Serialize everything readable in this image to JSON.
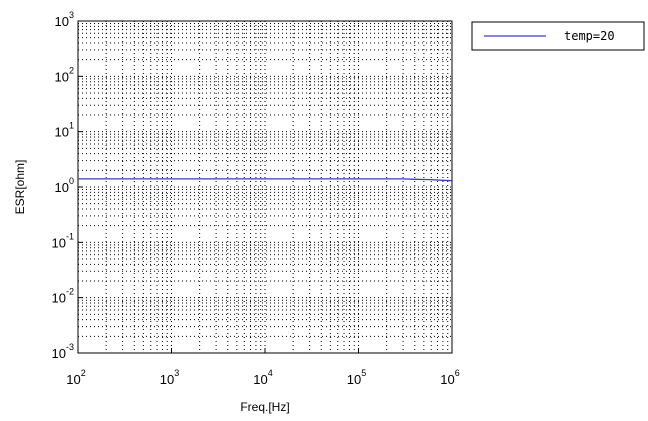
{
  "chart_data": {
    "type": "line",
    "title": "",
    "xlabel": "Freq.[Hz]",
    "ylabel": "ESR[ohm]",
    "x_scale": "log",
    "y_scale": "log",
    "xlim": [
      100,
      1000000
    ],
    "ylim": [
      0.001,
      1000
    ],
    "x_ticks": [
      {
        "base": "10",
        "exp": "2",
        "value": 100
      },
      {
        "base": "10",
        "exp": "3",
        "value": 1000
      },
      {
        "base": "10",
        "exp": "4",
        "value": 10000
      },
      {
        "base": "10",
        "exp": "5",
        "value": 100000
      },
      {
        "base": "10",
        "exp": "6",
        "value": 1000000
      }
    ],
    "y_ticks": [
      {
        "base": "10",
        "exp": "-3",
        "value": 0.001
      },
      {
        "base": "10",
        "exp": "-2",
        "value": 0.01
      },
      {
        "base": "10",
        "exp": "-1",
        "value": 0.1
      },
      {
        "base": "10",
        "exp": "0",
        "value": 1
      },
      {
        "base": "10",
        "exp": "1",
        "value": 10
      },
      {
        "base": "10",
        "exp": "2",
        "value": 100
      },
      {
        "base": "10",
        "exp": "3",
        "value": 1000
      }
    ],
    "grid": true,
    "legend_position": "outside-top-right",
    "series": [
      {
        "name": "temp=20",
        "color": "#3a3acc",
        "x": [
          100,
          1000,
          10000,
          100000,
          300000,
          400000,
          600000,
          800000,
          1000000
        ],
        "y": [
          1.4,
          1.4,
          1.4,
          1.4,
          1.4,
          1.38,
          1.36,
          1.32,
          1.3
        ]
      }
    ]
  }
}
